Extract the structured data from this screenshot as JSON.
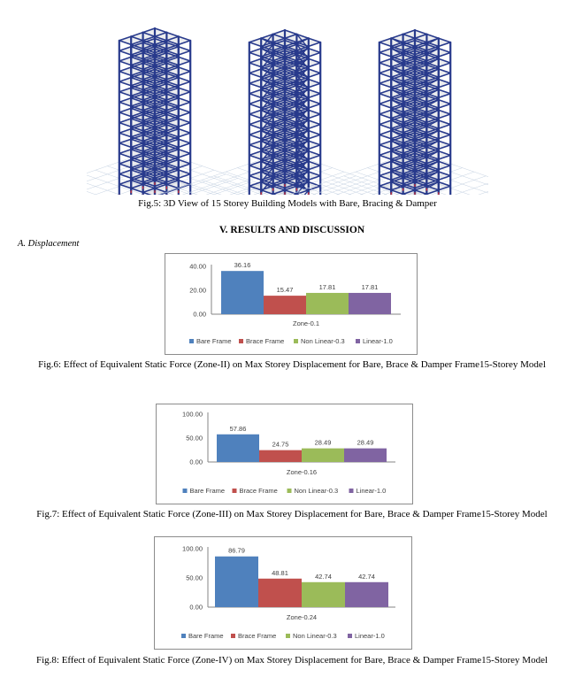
{
  "fig5": {
    "caption": "Fig.5: 3D View of 15 Storey Building Models with Bare, Bracing & Damper",
    "models": [
      {
        "name": "bare-frame-model",
        "braced": false,
        "dampers": false
      },
      {
        "name": "braced-frame-model",
        "braced": true,
        "dampers": false
      },
      {
        "name": "damper-frame-model",
        "braced": false,
        "dampers": true
      }
    ],
    "colors": {
      "frame": "#283a8c",
      "slab": "#c9cbd2",
      "grid": "#c5d2e2"
    }
  },
  "section": {
    "heading": "V.         RESULTS AND DISCUSSION",
    "subheading": "A.    Displacement"
  },
  "fig6": {
    "caption": "Fig.6: Effect of Equivalent Static Force (Zone-II) on Max Storey Displacement for Bare, Brace & Damper Frame15-Storey Model"
  },
  "fig7": {
    "caption": "Fig.7: Effect of Equivalent Static Force (Zone-III) on Max Storey Displacement for Bare, Brace & Damper Frame15-Storey Model"
  },
  "fig8": {
    "caption": "Fig.8: Effect of Equivalent Static Force (Zone-IV) on Max Storey Displacement for Bare, Brace & Damper Frame15-Storey Model"
  },
  "chart_data": [
    {
      "type": "bar",
      "categories": [
        "Zone-0.1"
      ],
      "series": [
        {
          "name": "Bare Frame",
          "values": [
            36.16
          ],
          "color": "#4f81bd"
        },
        {
          "name": "Brace Frame",
          "values": [
            15.47
          ],
          "color": "#c0504d"
        },
        {
          "name": "Non Linear-0.3",
          "values": [
            17.81
          ],
          "color": "#9bbb59"
        },
        {
          "name": "Linear-1.0",
          "values": [
            17.81
          ],
          "color": "#8064a2"
        }
      ],
      "data_labels": [
        "36.16",
        "15.47",
        "17.81",
        "17.81"
      ],
      "yticks": [
        "0.00",
        "20.00",
        "40.00"
      ],
      "ylim": [
        0,
        40
      ],
      "grid": false,
      "legend": "bottom"
    },
    {
      "type": "bar",
      "categories": [
        "Zone-0.16"
      ],
      "series": [
        {
          "name": "Bare Frame",
          "values": [
            57.86
          ],
          "color": "#4f81bd"
        },
        {
          "name": "Brace Frame",
          "values": [
            24.75
          ],
          "color": "#c0504d"
        },
        {
          "name": "Non Linear-0.3",
          "values": [
            28.49
          ],
          "color": "#9bbb59"
        },
        {
          "name": "Linear-1.0",
          "values": [
            28.49
          ],
          "color": "#8064a2"
        }
      ],
      "data_labels": [
        "57.86",
        "24.75",
        "28.49",
        "28.49"
      ],
      "yticks": [
        "0.00",
        "50.00",
        "100.00"
      ],
      "ylim": [
        0,
        100
      ],
      "grid": false,
      "legend": "bottom"
    },
    {
      "type": "bar",
      "categories": [
        "Zone-0.24"
      ],
      "series": [
        {
          "name": "Bare Frame",
          "values": [
            86.79
          ],
          "color": "#4f81bd"
        },
        {
          "name": "Brace Frame",
          "values": [
            48.81
          ],
          "color": "#c0504d"
        },
        {
          "name": "Non Linear-0.3",
          "values": [
            42.74
          ],
          "color": "#9bbb59"
        },
        {
          "name": "Linear-1.0",
          "values": [
            42.74
          ],
          "color": "#8064a2"
        }
      ],
      "data_labels": [
        "86.79",
        "48.81",
        "42.74",
        "42.74"
      ],
      "yticks": [
        "0.00",
        "50.00",
        "100.00"
      ],
      "ylim": [
        0,
        100
      ],
      "grid": false,
      "legend": "bottom"
    }
  ]
}
